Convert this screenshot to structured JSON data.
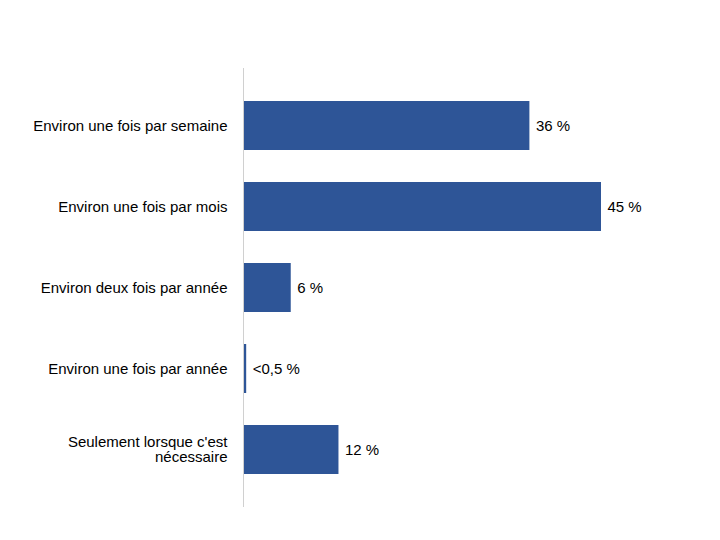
{
  "chart_data": {
    "type": "bar",
    "orientation": "horizontal",
    "categories": [
      "Environ une fois par semaine",
      "Environ une fois par mois",
      "Environ deux fois par année",
      "Environ une fois par année",
      "Seulement lorsque c'est nécessaire"
    ],
    "values": [
      36,
      45,
      6,
      0.4,
      12
    ],
    "value_labels": [
      "36 %",
      "45 %",
      "6 %",
      "<0,5 %",
      "12 %"
    ],
    "color": "#2E5597",
    "data_labels": true,
    "tick_labels": "y"
  }
}
